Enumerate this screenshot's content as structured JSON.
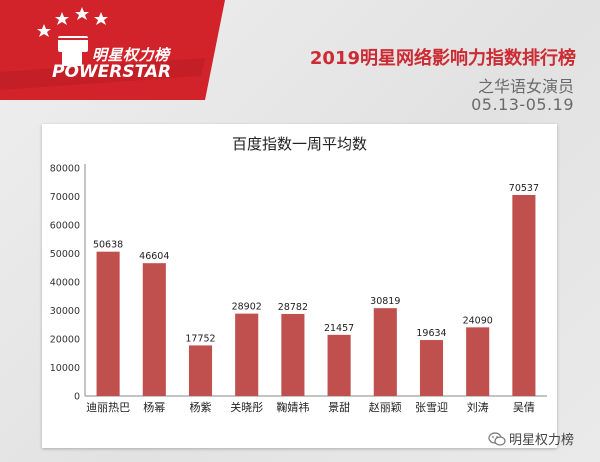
{
  "logo": {
    "cn_text": "明星权力榜",
    "en_text": "POWERSTAR"
  },
  "header": {
    "title": "2019明星网络影响力指数排行榜",
    "subtitle": "之华语女演员",
    "date_range": "05.13-05.19"
  },
  "watermark": {
    "text": "明星权力榜"
  },
  "colors": {
    "bar": "#c0504d",
    "logo_red": "#d2232a",
    "title_red": "#cc2b33"
  },
  "chart_data": {
    "type": "bar",
    "title": "百度指数一周平均数",
    "categories": [
      "迪丽热巴",
      "杨幂",
      "杨紫",
      "关晓彤",
      "鞠婧祎",
      "景甜",
      "赵丽颖",
      "张雪迎",
      "刘涛",
      "吴倩"
    ],
    "values": [
      50638,
      46604,
      17752,
      28902,
      28782,
      21457,
      30819,
      19634,
      24090,
      70537
    ],
    "ylim": [
      0,
      80000
    ],
    "yticks": [
      0,
      10000,
      20000,
      30000,
      40000,
      50000,
      60000,
      70000,
      80000
    ],
    "grid": false,
    "legend": "none",
    "xlabel": "",
    "ylabel": ""
  }
}
